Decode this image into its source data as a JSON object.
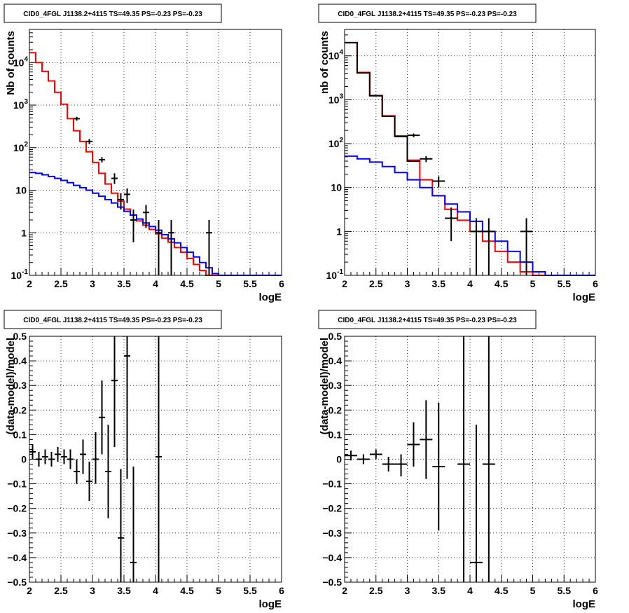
{
  "chart_data": [
    {
      "type": "line",
      "title": "CID0_4FGL J1138.2+4115 TS=49.35 PS=-0.23 PS=-0.23",
      "xlabel": "logE",
      "ylabel": "Nb of counts",
      "xlim": [
        2,
        6
      ],
      "ylim": [
        0.1,
        60000
      ],
      "log_y": true,
      "grid": true,
      "x_ticks": [
        "2",
        "2.5",
        "3",
        "3.5",
        "4",
        "4.5",
        "5",
        "5.5",
        "6"
      ],
      "y_ticks": [
        {
          "label": "10",
          "exp": "-1",
          "value": 0.1
        },
        {
          "label": "1",
          "exp": "",
          "value": 1
        },
        {
          "label": "10",
          "exp": "",
          "value": 10
        },
        {
          "label": "10",
          "exp": "2",
          "value": 100
        },
        {
          "label": "10",
          "exp": "3",
          "value": 1000
        },
        {
          "label": "10",
          "exp": "4",
          "value": 10000
        }
      ],
      "bin_edges": [
        2.0,
        2.1,
        2.2,
        2.3,
        2.4,
        2.5,
        2.6,
        2.7,
        2.8,
        2.9,
        3.0,
        3.1,
        3.2,
        3.3,
        3.4,
        3.5,
        3.6,
        3.7,
        3.8,
        3.9,
        4.0,
        4.1,
        4.2,
        4.3,
        4.4,
        4.5,
        4.6,
        4.7,
        4.8,
        4.9,
        5.0,
        5.1,
        5.2,
        5.3,
        5.4,
        5.5,
        5.6,
        5.7,
        5.8,
        5.9,
        6.0
      ],
      "series": [
        {
          "name": "",
          "color": "#ff0000",
          "kind": "step",
          "values": [
            17000,
            10000,
            6200,
            3700,
            2000,
            1050,
            480,
            250,
            140,
            80,
            45,
            25,
            14,
            8.5,
            5.5,
            3.6,
            2.6,
            1.9,
            1.5,
            1.2,
            0.95,
            0.75,
            0.6,
            0.45,
            0.35,
            0.25,
            0.18,
            0.13,
            0.1,
            0.1,
            0.1,
            0.1,
            0.1,
            0.1,
            0.1,
            0.1,
            0.1,
            0.1,
            0.1,
            0.1
          ]
        },
        {
          "name": "",
          "color": "#0000ff",
          "kind": "step",
          "values": [
            26,
            25,
            23,
            21,
            19,
            17,
            15,
            13,
            11.5,
            10,
            8.5,
            7.2,
            6,
            5,
            4,
            3.2,
            2.6,
            2.1,
            1.7,
            1.4,
            1.15,
            0.9,
            0.72,
            0.58,
            0.45,
            0.35,
            0.27,
            0.2,
            0.15,
            0.11,
            0.1,
            0.1,
            0.1,
            0.1,
            0.1,
            0.1,
            0.1,
            0.1,
            0.1,
            0.1
          ]
        },
        {
          "name": "",
          "color": "#000000",
          "kind": "errorbar",
          "points": [
            {
              "x": 2.75,
              "xerr": 0.05,
              "y": 480,
              "ylo": 430,
              "yhi": 530
            },
            {
              "x": 2.95,
              "xerr": 0.05,
              "y": 140,
              "ylo": 120,
              "yhi": 160
            },
            {
              "x": 3.15,
              "xerr": 0.05,
              "y": 52,
              "ylo": 45,
              "yhi": 60
            },
            {
              "x": 3.35,
              "xerr": 0.05,
              "y": 19,
              "ylo": 14,
              "yhi": 25
            },
            {
              "x": 3.45,
              "xerr": 0.05,
              "y": 6,
              "ylo": 3.5,
              "yhi": 8.5
            },
            {
              "x": 3.55,
              "xerr": 0.05,
              "y": 8,
              "ylo": 5,
              "yhi": 11
            },
            {
              "x": 3.65,
              "xerr": 0.05,
              "y": 2,
              "ylo": 0.6,
              "yhi": 3.5
            },
            {
              "x": 3.85,
              "xerr": 0.05,
              "y": 3,
              "ylo": 1.3,
              "yhi": 4.5
            },
            {
              "x": 4.05,
              "xerr": 0.05,
              "y": 1,
              "ylo": 0.1,
              "yhi": 2
            },
            {
              "x": 4.25,
              "xerr": 0.05,
              "y": 1,
              "ylo": 0.1,
              "yhi": 2
            },
            {
              "x": 4.85,
              "xerr": 0.05,
              "y": 1,
              "ylo": 0.1,
              "yhi": 2
            }
          ]
        }
      ]
    },
    {
      "type": "line",
      "title": "CID0_4FGL J1138.2+4115 TS=49.35 PS=-0.23 PS=-0.23",
      "xlabel": "logE",
      "ylabel": "nb of counts",
      "xlim": [
        2,
        6
      ],
      "ylim": [
        0.1,
        40000
      ],
      "log_y": true,
      "grid": true,
      "x_ticks": [
        "2",
        "2.5",
        "3",
        "3.5",
        "4",
        "4.5",
        "5",
        "5.5",
        "6"
      ],
      "y_ticks": [
        {
          "label": "10",
          "exp": "-1",
          "value": 0.1
        },
        {
          "label": "1",
          "exp": "",
          "value": 1
        },
        {
          "label": "10",
          "exp": "",
          "value": 10
        },
        {
          "label": "10",
          "exp": "2",
          "value": 100
        },
        {
          "label": "10",
          "exp": "3",
          "value": 1000
        },
        {
          "label": "10",
          "exp": "4",
          "value": 10000
        }
      ],
      "bin_edges": [
        2.0,
        2.2,
        2.4,
        2.6,
        2.8,
        3.0,
        3.2,
        3.4,
        3.6,
        3.8,
        4.0,
        4.2,
        4.4,
        4.6,
        4.8,
        5.0,
        5.2,
        5.4,
        5.6,
        5.8,
        6.0
      ],
      "series": [
        {
          "name": "",
          "color": "#ff0000",
          "kind": "step",
          "values": [
            20000,
            4200,
            1250,
            430,
            150,
            42,
            15,
            6.5,
            3.2,
            1.8,
            1.0,
            0.6,
            0.35,
            0.2,
            0.12,
            0.1,
            0.1,
            0.1,
            0.1,
            0.1
          ]
        },
        {
          "name": "",
          "color": "#0000ff",
          "kind": "step",
          "values": [
            52,
            45,
            38,
            30,
            22,
            15,
            10,
            6.5,
            4.2,
            2.8,
            1.7,
            1.0,
            0.6,
            0.35,
            0.2,
            0.12,
            0.1,
            0.1,
            0.1,
            0.1
          ]
        },
        {
          "name": "",
          "color": "#000000",
          "kind": "step",
          "values": [
            20000,
            4100,
            1230,
            420,
            145,
            40,
            0,
            0,
            0,
            0,
            0,
            0,
            0,
            0,
            0,
            0,
            0,
            0,
            0,
            0
          ]
        },
        {
          "name": "",
          "color": "#000000",
          "kind": "errorbar",
          "points": [
            {
              "x": 3.1,
              "xerr": 0.1,
              "y": 155,
              "ylo": 140,
              "yhi": 170
            },
            {
              "x": 3.3,
              "xerr": 0.1,
              "y": 45,
              "ylo": 38,
              "yhi": 52
            },
            {
              "x": 3.5,
              "xerr": 0.1,
              "y": 14,
              "ylo": 10,
              "yhi": 18
            },
            {
              "x": 3.7,
              "xerr": 0.1,
              "y": 2,
              "ylo": 0.6,
              "yhi": 3.5
            },
            {
              "x": 4.1,
              "xerr": 0.1,
              "y": 1,
              "ylo": 0.1,
              "yhi": 2
            },
            {
              "x": 4.3,
              "xerr": 0.1,
              "y": 1,
              "ylo": 0.1,
              "yhi": 2
            },
            {
              "x": 4.9,
              "xerr": 0.1,
              "y": 1,
              "ylo": 0.1,
              "yhi": 2
            }
          ]
        }
      ]
    },
    {
      "type": "scatter",
      "title": "CID0_4FGL J1138.2+4115 TS=49.35 PS=-0.23 PS=-0.23",
      "xlabel": "logE",
      "ylabel": "(data-model)/model",
      "xlim": [
        2,
        6
      ],
      "ylim": [
        -0.5,
        0.5
      ],
      "log_y": false,
      "grid": true,
      "x_ticks": [
        "2",
        "2.5",
        "3",
        "3.5",
        "4",
        "4.5",
        "5",
        "5.5",
        "6"
      ],
      "y_ticks": [
        {
          "label": "−0.5",
          "exp": "",
          "value": -0.5
        },
        {
          "label": "−0.4",
          "exp": "",
          "value": -0.4
        },
        {
          "label": "−0.3",
          "exp": "",
          "value": -0.3
        },
        {
          "label": "−0.2",
          "exp": "",
          "value": -0.2
        },
        {
          "label": "−0.1",
          "exp": "",
          "value": -0.1
        },
        {
          "label": "0",
          "exp": "",
          "value": 0
        },
        {
          "label": "0.1",
          "exp": "",
          "value": 0.1
        },
        {
          "label": "0.2",
          "exp": "",
          "value": 0.2
        },
        {
          "label": "0.3",
          "exp": "",
          "value": 0.3
        },
        {
          "label": "0.4",
          "exp": "",
          "value": 0.4
        },
        {
          "label": "0.5",
          "exp": "",
          "value": 0.5
        }
      ],
      "series": [
        {
          "name": "",
          "color": "#000000",
          "kind": "errorbar",
          "points": [
            {
              "x": 2.05,
              "xerr": 0.05,
              "y": 0.03,
              "ylo": 0.0,
              "yhi": 0.06
            },
            {
              "x": 2.15,
              "xerr": 0.05,
              "y": 0.0,
              "ylo": -0.03,
              "yhi": 0.03
            },
            {
              "x": 2.25,
              "xerr": 0.05,
              "y": 0.01,
              "ylo": -0.02,
              "yhi": 0.04
            },
            {
              "x": 2.35,
              "xerr": 0.05,
              "y": 0.0,
              "ylo": -0.03,
              "yhi": 0.03
            },
            {
              "x": 2.45,
              "xerr": 0.05,
              "y": 0.02,
              "ylo": -0.01,
              "yhi": 0.05
            },
            {
              "x": 2.55,
              "xerr": 0.05,
              "y": 0.01,
              "ylo": -0.02,
              "yhi": 0.04
            },
            {
              "x": 2.65,
              "xerr": 0.05,
              "y": 0.0,
              "ylo": -0.04,
              "yhi": 0.04
            },
            {
              "x": 2.75,
              "xerr": 0.05,
              "y": -0.05,
              "ylo": -0.1,
              "yhi": 0.0
            },
            {
              "x": 2.85,
              "xerr": 0.05,
              "y": 0.02,
              "ylo": -0.06,
              "yhi": 0.08
            },
            {
              "x": 2.95,
              "xerr": 0.05,
              "y": -0.09,
              "ylo": -0.17,
              "yhi": -0.01
            },
            {
              "x": 3.05,
              "xerr": 0.05,
              "y": 0.0,
              "ylo": -0.1,
              "yhi": 0.11
            },
            {
              "x": 3.15,
              "xerr": 0.05,
              "y": 0.17,
              "ylo": 0.02,
              "yhi": 0.32
            },
            {
              "x": 3.25,
              "xerr": 0.05,
              "y": -0.05,
              "ylo": -0.24,
              "yhi": 0.14
            },
            {
              "x": 3.35,
              "xerr": 0.05,
              "y": 0.32,
              "ylo": 0.05,
              "yhi": 0.5
            },
            {
              "x": 3.45,
              "xerr": 0.05,
              "y": -0.32,
              "ylo": -0.5,
              "yhi": -0.04
            },
            {
              "x": 3.55,
              "xerr": 0.05,
              "y": 0.42,
              "ylo": -0.08,
              "yhi": 0.5
            },
            {
              "x": 3.65,
              "xerr": 0.05,
              "y": -0.42,
              "ylo": -0.5,
              "yhi": -0.03
            },
            {
              "x": 4.05,
              "xerr": 0.05,
              "y": 0.01,
              "ylo": -0.5,
              "yhi": 0.5
            }
          ]
        }
      ]
    },
    {
      "type": "scatter",
      "title": "CID0_4FGL J1138.2+4115 TS=49.35 PS=-0.23 PS=-0.23",
      "xlabel": "logE",
      "ylabel": "(data-model)/model",
      "xlim": [
        2,
        6
      ],
      "ylim": [
        -0.5,
        0.5
      ],
      "log_y": false,
      "grid": true,
      "x_ticks": [
        "2",
        "2.5",
        "3",
        "3.5",
        "4",
        "4.5",
        "5",
        "5.5",
        "6"
      ],
      "y_ticks": [
        {
          "label": "−0.5",
          "exp": "",
          "value": -0.5
        },
        {
          "label": "−0.4",
          "exp": "",
          "value": -0.4
        },
        {
          "label": "−0.3",
          "exp": "",
          "value": -0.3
        },
        {
          "label": "−0.2",
          "exp": "",
          "value": -0.2
        },
        {
          "label": "−0.1",
          "exp": "",
          "value": -0.1
        },
        {
          "label": "0",
          "exp": "",
          "value": 0
        },
        {
          "label": "0.1",
          "exp": "",
          "value": 0.1
        },
        {
          "label": "0.2",
          "exp": "",
          "value": 0.2
        },
        {
          "label": "0.3",
          "exp": "",
          "value": 0.3
        },
        {
          "label": "0.4",
          "exp": "",
          "value": 0.4
        },
        {
          "label": "0.5",
          "exp": "",
          "value": 0.5
        }
      ],
      "series": [
        {
          "name": "",
          "color": "#000000",
          "kind": "errorbar",
          "points": [
            {
              "x": 2.1,
              "xerr": 0.1,
              "y": 0.015,
              "ylo": -0.005,
              "yhi": 0.035
            },
            {
              "x": 2.3,
              "xerr": 0.1,
              "y": 0.0,
              "ylo": -0.02,
              "yhi": 0.02
            },
            {
              "x": 2.5,
              "xerr": 0.1,
              "y": 0.02,
              "ylo": 0.0,
              "yhi": 0.04
            },
            {
              "x": 2.7,
              "xerr": 0.1,
              "y": -0.02,
              "ylo": -0.05,
              "yhi": 0.01
            },
            {
              "x": 2.9,
              "xerr": 0.1,
              "y": -0.02,
              "ylo": -0.07,
              "yhi": 0.02
            },
            {
              "x": 3.1,
              "xerr": 0.1,
              "y": 0.06,
              "ylo": -0.03,
              "yhi": 0.15
            },
            {
              "x": 3.3,
              "xerr": 0.1,
              "y": 0.08,
              "ylo": -0.08,
              "yhi": 0.24
            },
            {
              "x": 3.5,
              "xerr": 0.1,
              "y": -0.03,
              "ylo": -0.29,
              "yhi": 0.23
            },
            {
              "x": 3.9,
              "xerr": 0.1,
              "y": -0.02,
              "ylo": -0.5,
              "yhi": 0.5
            },
            {
              "x": 4.1,
              "xerr": 0.1,
              "y": -0.42,
              "ylo": -0.5,
              "yhi": 0.14
            },
            {
              "x": 4.3,
              "xerr": 0.1,
              "y": -0.02,
              "ylo": -0.5,
              "yhi": 0.5
            }
          ]
        }
      ]
    }
  ]
}
